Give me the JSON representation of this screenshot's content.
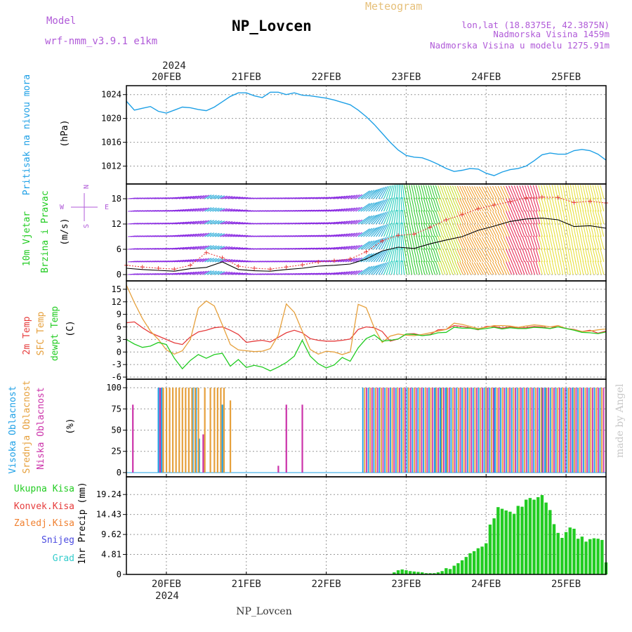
{
  "header": {
    "model_label": "Model",
    "model_name": "wrf-nmm_v3.9.1 e1km",
    "title": "NP_Lovcen",
    "meteogram_label": "Meteogram",
    "lonlat": "lon,lat (18.8375E, 42.3875N)",
    "elevation": "Nadmorska Visina 1459m",
    "model_elevation": "Nadmorska Visina u modelu 1275.91m",
    "year": "2024",
    "footer_station": "NP_Lovcen",
    "watermark": "made by Angel"
  },
  "colors": {
    "pressure": "#1ea0e6",
    "temp2m": "#e63c3c",
    "sfc_temp": "#e6a03c",
    "dewpoint": "#22cc22",
    "cloud_high": "#1ea0e6",
    "cloud_mid": "#e6a03c",
    "cloud_low": "#cc33aa",
    "precip_total": "#22cc22",
    "precip_conv": "#e63c3c",
    "precip_frozen": "#f08030",
    "snow": "#4a4ae0",
    "hail": "#33cccc",
    "model_label": "#b05ad8",
    "meteogram_label": "#e6c07a",
    "wind_green": "#22cc22"
  },
  "chart_data": [
    {
      "type": "line",
      "panel": "pressure",
      "ylabel_lines": [
        "Pritisak na nivou mora",
        "(hPa)"
      ],
      "yticks": [
        1012,
        1016,
        1020,
        1024
      ],
      "ylim": [
        1009,
        1025.5
      ],
      "xlim": [
        19.5,
        25.5
      ],
      "xticks": [
        "20FEB",
        "21FEB",
        "22FEB",
        "23FEB",
        "24FEB",
        "25FEB"
      ],
      "grid": true,
      "series": [
        {
          "x": [
            19.5,
            19.6,
            19.7,
            19.8,
            19.9,
            20.0,
            20.1,
            20.2,
            20.3,
            20.4,
            20.5,
            20.6,
            20.7,
            20.8,
            20.9,
            21.0,
            21.1,
            21.2,
            21.3,
            21.4,
            21.5,
            21.6,
            21.7,
            21.8,
            21.9,
            22.0,
            22.1,
            22.2,
            22.3,
            22.4,
            22.5,
            22.6,
            22.7,
            22.8,
            22.9,
            23.0,
            23.1,
            23.2,
            23.3,
            23.4,
            23.5,
            23.6,
            23.7,
            23.8,
            23.9,
            24.0,
            24.1,
            24.2,
            24.3,
            24.4,
            24.5,
            24.6,
            24.7,
            24.8,
            24.9,
            25.0,
            25.1,
            25.2,
            25.3,
            25.4,
            25.5
          ],
          "values": [
            1022.9,
            1021.4,
            1021.7,
            1022.0,
            1021.2,
            1020.9,
            1021.4,
            1021.9,
            1021.8,
            1021.5,
            1021.3,
            1021.9,
            1022.8,
            1023.7,
            1024.3,
            1024.3,
            1023.8,
            1023.5,
            1024.4,
            1024.4,
            1024.0,
            1024.3,
            1023.9,
            1023.8,
            1023.6,
            1023.4,
            1023.1,
            1022.7,
            1022.3,
            1021.4,
            1020.3,
            1019.0,
            1017.5,
            1016.0,
            1014.7,
            1013.8,
            1013.5,
            1013.4,
            1012.9,
            1012.3,
            1011.6,
            1011.1,
            1011.3,
            1011.6,
            1011.5,
            1010.8,
            1010.4,
            1011.0,
            1011.4,
            1011.6,
            1012.0,
            1012.9,
            1013.9,
            1014.2,
            1014.0,
            1014.0,
            1014.6,
            1014.8,
            1014.6,
            1014.0,
            1013.0
          ]
        }
      ]
    },
    {
      "type": "line",
      "panel": "wind",
      "ylabel_lines": [
        "10m Vjetar",
        "Brzina i Pravac",
        "(m/s)"
      ],
      "compass": [
        "N",
        "E",
        "S",
        "W"
      ],
      "yticks": [
        0,
        6,
        12,
        18
      ],
      "ylim": [
        -1.5,
        21.5
      ],
      "xlim": [
        19.5,
        25.5
      ],
      "grid": true,
      "series": [
        {
          "kind": "mean",
          "x": [
            19.5,
            19.7,
            19.9,
            20.1,
            20.3,
            20.5,
            20.7,
            20.9,
            21.1,
            21.3,
            21.5,
            21.7,
            21.9,
            22.1,
            22.3,
            22.5,
            22.7,
            22.9,
            23.1,
            23.3,
            23.5,
            23.7,
            23.9,
            24.1,
            24.3,
            24.5,
            24.7,
            24.9,
            25.1,
            25.3,
            25.5
          ],
          "values": [
            1.5,
            1.2,
            1.0,
            0.8,
            1.4,
            1.7,
            3.0,
            1.2,
            0.9,
            0.8,
            1.2,
            1.5,
            2.0,
            2.2,
            2.5,
            3.7,
            5.6,
            6.5,
            6.2,
            7.3,
            8.2,
            9.0,
            10.5,
            11.5,
            12.6,
            13.2,
            13.4,
            13.0,
            11.4,
            11.6,
            11.0
          ]
        },
        {
          "kind": "gust",
          "x": [
            19.5,
            19.7,
            19.9,
            20.1,
            20.3,
            20.5,
            20.7,
            20.9,
            21.1,
            21.3,
            21.5,
            21.7,
            21.9,
            22.1,
            22.3,
            22.5,
            22.7,
            22.9,
            23.1,
            23.3,
            23.5,
            23.7,
            23.9,
            24.1,
            24.3,
            24.5,
            24.7,
            24.9,
            25.1,
            25.3,
            25.5
          ],
          "values": [
            2.2,
            1.8,
            1.5,
            1.3,
            2.2,
            5.2,
            4.0,
            2.0,
            1.5,
            1.3,
            1.8,
            2.3,
            3.0,
            3.3,
            3.7,
            5.4,
            8.0,
            9.3,
            9.6,
            11.2,
            13.0,
            14.2,
            15.6,
            16.5,
            17.3,
            18.2,
            18.4,
            18.3,
            17.1,
            17.4,
            17.0
          ]
        }
      ],
      "arrow_directions_deg": {
        "x": [
          19.5,
          20.0,
          20.5,
          21.0,
          21.5,
          22.0,
          22.5,
          23.0,
          23.5,
          24.0,
          24.5,
          25.0,
          25.5
        ],
        "values": [
          265,
          262,
          240,
          265,
          263,
          258,
          230,
          170,
          160,
          150,
          160,
          170,
          165
        ]
      }
    },
    {
      "type": "line",
      "panel": "temperature",
      "ylabel_lines": [
        "2m Temp",
        "SFC Temp",
        "dewpt Temp",
        "(C)"
      ],
      "yticks": [
        -6,
        -3,
        0,
        3,
        6,
        9,
        12,
        15
      ],
      "ylim": [
        -6.5,
        17
      ],
      "xlim": [
        19.5,
        25.5
      ],
      "grid": true,
      "series": [
        {
          "name": "2m Temp",
          "x": [
            19.5,
            19.6,
            19.7,
            19.8,
            19.9,
            20.0,
            20.1,
            20.2,
            20.3,
            20.4,
            20.5,
            20.6,
            20.7,
            20.8,
            20.9,
            21.0,
            21.1,
            21.2,
            21.3,
            21.4,
            21.5,
            21.6,
            21.7,
            21.8,
            21.9,
            22.0,
            22.1,
            22.2,
            22.3,
            22.4,
            22.5,
            22.6,
            22.7,
            22.8,
            22.9,
            23.0,
            23.1,
            23.2,
            23.3,
            23.4,
            23.5,
            23.6,
            23.7,
            23.8,
            23.9,
            24.0,
            24.1,
            24.2,
            24.3,
            24.4,
            24.5,
            24.6,
            24.7,
            24.8,
            24.9,
            25.0,
            25.1,
            25.2,
            25.3,
            25.4,
            25.5
          ],
          "values": [
            7.0,
            7.2,
            5.8,
            4.6,
            3.8,
            3.0,
            2.2,
            1.8,
            3.6,
            4.8,
            5.2,
            5.8,
            6.0,
            5.2,
            4.2,
            2.3,
            2.6,
            2.8,
            2.4,
            3.5,
            4.6,
            5.2,
            4.6,
            3.2,
            2.8,
            2.6,
            2.6,
            2.8,
            3.1,
            5.4,
            6.0,
            5.8,
            4.9,
            2.6,
            3.1,
            4.3,
            4.4,
            3.9,
            4.2,
            5.3,
            5.4,
            6.3,
            6.1,
            5.8,
            5.3,
            6.1,
            6.1,
            5.7,
            6.0,
            5.7,
            5.8,
            6.1,
            6.0,
            5.6,
            6.3,
            5.6,
            5.4,
            4.9,
            5.2,
            4.5,
            5.0
          ]
        },
        {
          "name": "SFC Temp",
          "x": [
            19.5,
            19.6,
            19.7,
            19.8,
            19.9,
            20.0,
            20.1,
            20.2,
            20.3,
            20.4,
            20.5,
            20.6,
            20.7,
            20.8,
            20.9,
            21.0,
            21.1,
            21.2,
            21.3,
            21.4,
            21.5,
            21.6,
            21.7,
            21.8,
            21.9,
            22.0,
            22.1,
            22.2,
            22.3,
            22.4,
            22.5,
            22.6,
            22.7,
            22.8,
            22.9,
            23.0,
            23.1,
            23.2,
            23.3,
            23.4,
            23.5,
            23.6,
            23.7,
            23.8,
            23.9,
            24.0,
            24.1,
            24.2,
            24.3,
            24.4,
            24.5,
            24.6,
            24.7,
            24.8,
            24.9,
            25.0,
            25.1,
            25.2,
            25.3,
            25.4,
            25.5
          ],
          "values": [
            16.0,
            11.8,
            8.0,
            5.0,
            3.0,
            0.5,
            -0.5,
            0.3,
            3.0,
            10.5,
            12.2,
            11.0,
            6.5,
            1.8,
            0.5,
            0.3,
            0.1,
            0.2,
            0.8,
            4.0,
            11.5,
            9.5,
            5.0,
            0.6,
            -0.5,
            0.2,
            0.0,
            -0.6,
            0.0,
            11.4,
            10.6,
            5.8,
            2.3,
            3.8,
            4.3,
            4.0,
            3.9,
            4.2,
            4.6,
            5.0,
            5.4,
            6.9,
            6.6,
            6.1,
            5.6,
            5.9,
            6.3,
            6.3,
            6.2,
            5.9,
            6.2,
            6.5,
            6.3,
            6.0,
            6.3,
            5.6,
            5.3,
            4.9,
            5.0,
            5.3,
            5.5
          ]
        },
        {
          "name": "dewpt Temp",
          "x": [
            19.5,
            19.6,
            19.7,
            19.8,
            19.9,
            20.0,
            20.1,
            20.2,
            20.3,
            20.4,
            20.5,
            20.6,
            20.7,
            20.8,
            20.9,
            21.0,
            21.1,
            21.2,
            21.3,
            21.4,
            21.5,
            21.6,
            21.7,
            21.8,
            21.9,
            22.0,
            22.1,
            22.2,
            22.3,
            22.4,
            22.5,
            22.6,
            22.7,
            22.8,
            22.9,
            23.0,
            23.1,
            23.2,
            23.3,
            23.4,
            23.5,
            23.6,
            23.7,
            23.8,
            23.9,
            24.0,
            24.1,
            24.2,
            24.3,
            24.4,
            24.5,
            24.6,
            24.7,
            24.8,
            24.9,
            25.0,
            25.1,
            25.2,
            25.3,
            25.4,
            25.5
          ],
          "values": [
            3.0,
            1.9,
            1.1,
            1.4,
            2.3,
            1.8,
            -1.5,
            -4.0,
            -2.0,
            -0.6,
            -1.5,
            -0.6,
            -0.3,
            -3.4,
            -1.8,
            -3.7,
            -3.2,
            -3.6,
            -4.5,
            -3.6,
            -2.5,
            -1.0,
            2.8,
            -1.0,
            -2.8,
            -3.8,
            -3.1,
            -1.3,
            -2.2,
            1.0,
            3.2,
            4.1,
            2.6,
            2.8,
            3.1,
            4.3,
            4.2,
            3.9,
            4.1,
            4.6,
            4.7,
            5.9,
            5.7,
            5.7,
            5.4,
            5.6,
            5.9,
            5.5,
            5.8,
            5.6,
            5.6,
            5.9,
            5.8,
            5.6,
            6.0,
            5.6,
            5.2,
            4.7,
            4.6,
            4.4,
            4.8
          ]
        }
      ]
    },
    {
      "type": "bar",
      "panel": "cloud",
      "ylabel_lines": [
        "Visoka Oblacnost",
        "Srednja Oblacnost",
        "Niska Oblacnost",
        "(%)"
      ],
      "yticks": [
        0,
        25,
        50,
        75,
        100
      ],
      "ylim": [
        -5,
        110
      ],
      "xlim": [
        19.5,
        25.5
      ],
      "grid": true,
      "series": [
        {
          "name": "Visoka Oblacnost",
          "x": [
            19.9,
            19.94,
            20.33,
            20.37,
            20.41,
            20.7,
            23.36,
            23.44,
            23.5,
            24.0,
            24.1,
            24.7,
            24.75,
            25.1
          ],
          "values": [
            100,
            100,
            100,
            100,
            40,
            80,
            100,
            100,
            100,
            100,
            100,
            100,
            100,
            100
          ]
        },
        {
          "name": "Srednja Oblacnost",
          "x": [
            19.96,
            20.0,
            20.04,
            20.08,
            20.12,
            20.16,
            20.2,
            20.24,
            20.28,
            20.32,
            20.36,
            20.4,
            20.48,
            20.55,
            20.6,
            20.64,
            20.68,
            20.72,
            20.8
          ],
          "values": [
            100,
            100,
            100,
            100,
            100,
            100,
            100,
            100,
            100,
            100,
            100,
            100,
            100,
            100,
            100,
            100,
            100,
            100,
            85
          ]
        },
        {
          "name": "Niska Oblacnost",
          "x": [
            19.58,
            19.92,
            20.46,
            21.4,
            21.5,
            21.7
          ],
          "values": [
            80,
            100,
            45,
            8,
            80,
            80
          ]
        }
      ],
      "dense_block": {
        "x_start": 22.45,
        "x_end": 25.48,
        "step": 0.023,
        "value": 100
      }
    },
    {
      "type": "bar",
      "panel": "precip",
      "ylabel_lines": [
        "1hr Precip (mm)"
      ],
      "legend": [
        "Ukupna Kisa",
        "Konvek.Kisa",
        "Zaledj.Kisa",
        "Snijeg",
        "Grad"
      ],
      "yticks": [
        0,
        4.81,
        9.62,
        14.43,
        19.24
      ],
      "ylim": [
        0,
        23.5
      ],
      "xlim": [
        19.5,
        25.5
      ],
      "grid": true,
      "series": [
        {
          "name": "Ukupna Kisa",
          "x": [
            22.85,
            22.9,
            22.95,
            23.0,
            23.05,
            23.1,
            23.15,
            23.2,
            23.25,
            23.3,
            23.35,
            23.4,
            23.45,
            23.5,
            23.55,
            23.6,
            23.65,
            23.7,
            23.75,
            23.8,
            23.85,
            23.9,
            23.95,
            24.0,
            24.05,
            24.1,
            24.15,
            24.2,
            24.25,
            24.3,
            24.35,
            24.4,
            24.45,
            24.5,
            24.55,
            24.6,
            24.65,
            24.7,
            24.75,
            24.8,
            24.85,
            24.9,
            24.95,
            25.0,
            25.05,
            25.1,
            25.15,
            25.2,
            25.25,
            25.3,
            25.35,
            25.4,
            25.45,
            25.5
          ],
          "values": [
            0.5,
            1.0,
            1.2,
            1.0,
            0.8,
            0.7,
            0.6,
            0.5,
            0.3,
            0.3,
            0.3,
            0.5,
            0.8,
            1.5,
            1.3,
            2.1,
            2.7,
            3.4,
            4.2,
            5.1,
            5.6,
            6.3,
            6.7,
            7.5,
            12.0,
            13.5,
            16.2,
            15.8,
            15.4,
            15.1,
            14.6,
            16.5,
            16.3,
            18.0,
            18.4,
            18.0,
            18.6,
            19.1,
            17.3,
            15.5,
            12.1,
            10.0,
            8.8,
            10.2,
            11.3,
            11.0,
            8.6,
            9.1,
            7.9,
            8.5,
            8.7,
            8.6,
            8.3,
            2.9
          ]
        }
      ]
    }
  ]
}
